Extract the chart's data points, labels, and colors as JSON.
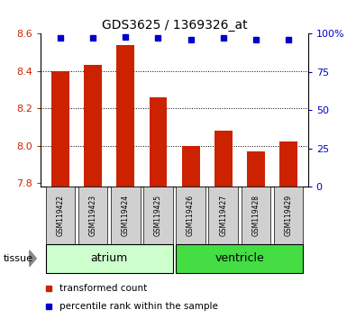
{
  "title": "GDS3625 / 1369326_at",
  "samples": [
    "GSM119422",
    "GSM119423",
    "GSM119424",
    "GSM119425",
    "GSM119426",
    "GSM119427",
    "GSM119428",
    "GSM119429"
  ],
  "transformed_counts": [
    8.4,
    8.43,
    8.54,
    8.26,
    8.0,
    8.08,
    7.97,
    8.02
  ],
  "percentile_ranks": [
    97,
    97,
    98,
    97,
    96,
    97,
    96,
    96
  ],
  "ylim_left": [
    7.78,
    8.6
  ],
  "ylim_right": [
    0,
    100
  ],
  "yticks_left": [
    7.8,
    8.0,
    8.2,
    8.4,
    8.6
  ],
  "yticks_right": [
    0,
    25,
    50,
    75,
    100
  ],
  "bar_color": "#cc2200",
  "marker_color": "#0000cc",
  "tissue_groups": [
    {
      "label": "atrium",
      "start": 0,
      "end": 3,
      "color": "#ccffcc"
    },
    {
      "label": "ventricle",
      "start": 4,
      "end": 7,
      "color": "#44dd44"
    }
  ],
  "tissue_label": "tissue",
  "legend_items": [
    {
      "label": "transformed count",
      "color": "#cc2200"
    },
    {
      "label": "percentile rank within the sample",
      "color": "#0000cc"
    }
  ],
  "bar_width": 0.55,
  "baseline": 7.78,
  "sample_box_color": "#d0d0d0",
  "grid_yticks": [
    8.0,
    8.2,
    8.4
  ]
}
